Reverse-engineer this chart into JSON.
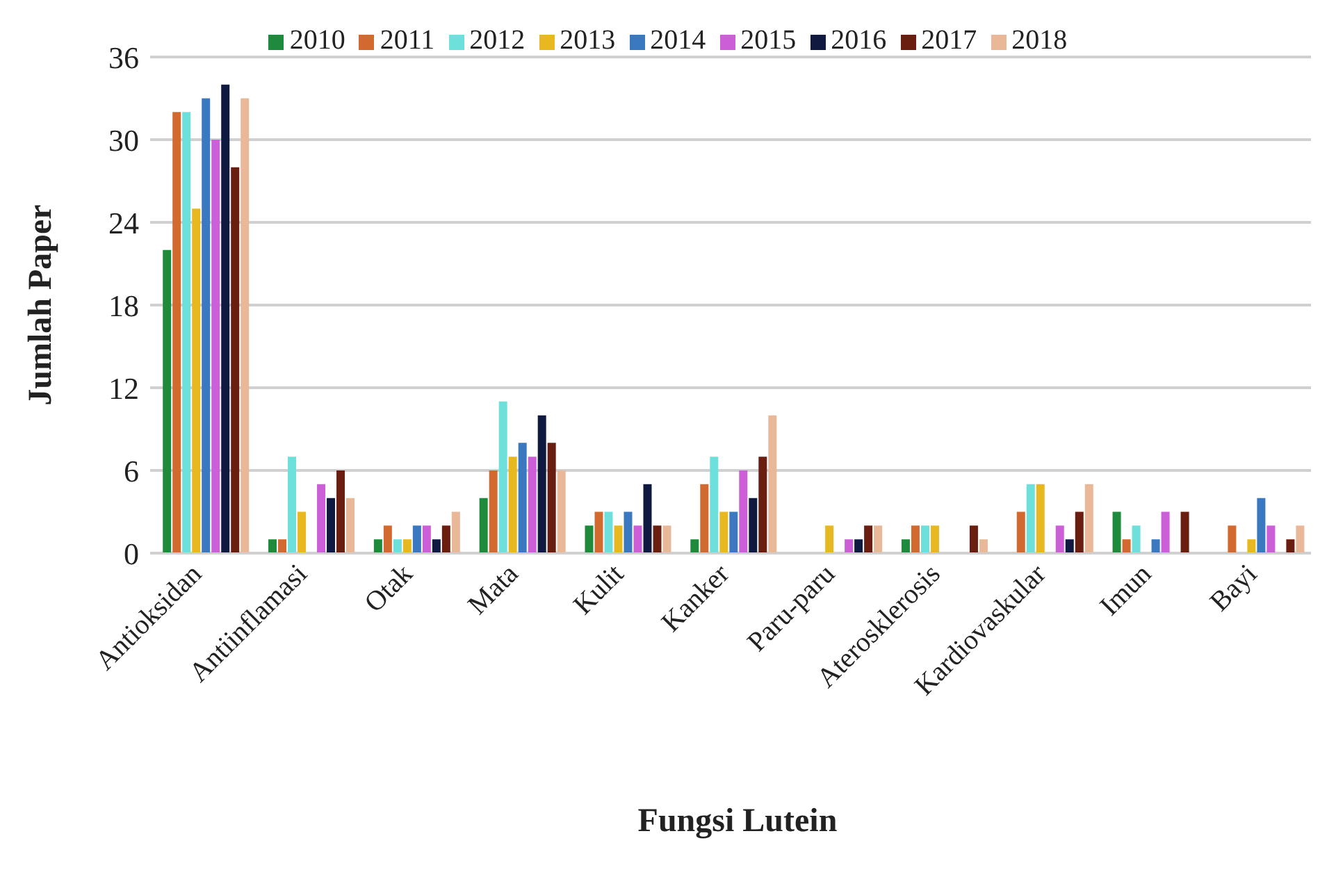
{
  "chart_data": {
    "type": "bar",
    "xlabel": "Fungsi Lutein",
    "ylabel": "Jumlah Paper",
    "categories": [
      "Antioksidan",
      "Antiinflamasi",
      "Otak",
      "Mata",
      "Kulit",
      "Kanker",
      "Paru-paru",
      "Aterosklerosis",
      "Kardiovaskular",
      "Imun",
      "Bayi"
    ],
    "series": [
      {
        "name": "2010",
        "color": "#1e8a3c",
        "values": [
          22,
          1,
          1,
          4,
          2,
          1,
          0,
          1,
          0,
          3,
          0
        ]
      },
      {
        "name": "2011",
        "color": "#d2692e",
        "values": [
          32,
          1,
          2,
          6,
          3,
          5,
          0,
          2,
          3,
          1,
          2
        ]
      },
      {
        "name": "2012",
        "color": "#6ee0dc",
        "values": [
          32,
          7,
          1,
          11,
          3,
          7,
          0,
          2,
          5,
          2,
          0
        ]
      },
      {
        "name": "2013",
        "color": "#e8b820",
        "values": [
          25,
          3,
          1,
          7,
          2,
          3,
          2,
          2,
          5,
          0,
          1
        ]
      },
      {
        "name": "2014",
        "color": "#3a78c0",
        "values": [
          33,
          0,
          2,
          8,
          3,
          3,
          0,
          0,
          0,
          1,
          4
        ]
      },
      {
        "name": "2015",
        "color": "#cc5fd8",
        "values": [
          30,
          5,
          2,
          7,
          2,
          6,
          1,
          0,
          2,
          3,
          2
        ]
      },
      {
        "name": "2016",
        "color": "#101a40",
        "values": [
          34,
          4,
          1,
          10,
          5,
          4,
          1,
          0,
          1,
          0,
          0
        ]
      },
      {
        "name": "2017",
        "color": "#6a1e10",
        "values": [
          28,
          6,
          2,
          8,
          2,
          7,
          2,
          2,
          3,
          3,
          1
        ]
      },
      {
        "name": "2018",
        "color": "#e8b898",
        "values": [
          33,
          4,
          3,
          6,
          2,
          10,
          2,
          1,
          5,
          0,
          2
        ]
      }
    ],
    "ylim": [
      0,
      36
    ],
    "yticks": [
      0,
      6,
      12,
      18,
      24,
      30,
      36
    ],
    "grid": "y",
    "legend": "top"
  }
}
